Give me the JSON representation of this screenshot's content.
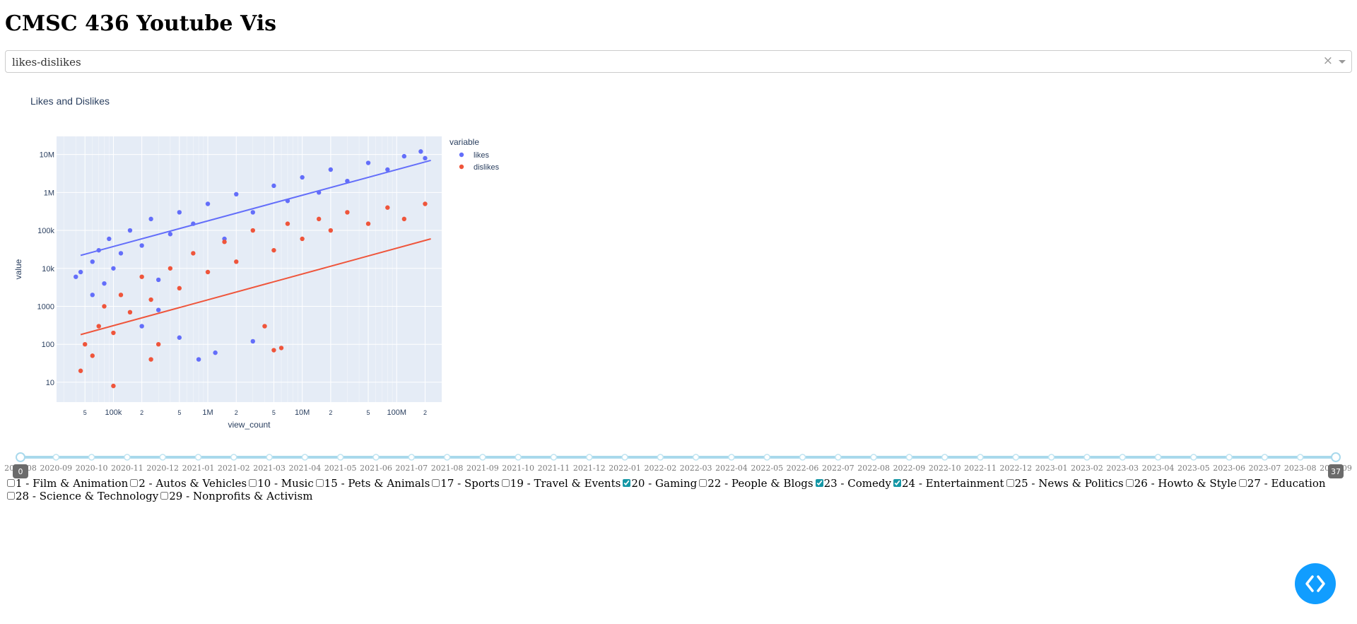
{
  "page": {
    "title": "CMSC 436 Youtube Vis"
  },
  "dropdown": {
    "value": "likes-dislikes",
    "clear_icon": "×",
    "arrow_icon": "chevron-down-icon"
  },
  "chart_data": {
    "type": "scatter",
    "title": "Likes and Dislikes",
    "xlabel": "view_count",
    "ylabel": "value",
    "x_scale": "log",
    "y_scale": "log",
    "xlim": [
      25000,
      300000000
    ],
    "ylim": [
      3,
      30000000
    ],
    "x_ticks": [
      {
        "v": 50000,
        "label": "5"
      },
      {
        "v": 100000,
        "label": "100k"
      },
      {
        "v": 200000,
        "label": "2"
      },
      {
        "v": 500000,
        "label": "5"
      },
      {
        "v": 1000000,
        "label": "1M"
      },
      {
        "v": 2000000,
        "label": "2"
      },
      {
        "v": 5000000,
        "label": "5"
      },
      {
        "v": 10000000,
        "label": "10M"
      },
      {
        "v": 20000000,
        "label": "2"
      },
      {
        "v": 50000000,
        "label": "5"
      },
      {
        "v": 100000000,
        "label": "100M"
      },
      {
        "v": 200000000,
        "label": "2"
      }
    ],
    "y_ticks": [
      {
        "v": 10,
        "label": "10"
      },
      {
        "v": 100,
        "label": "100"
      },
      {
        "v": 1000,
        "label": "1000"
      },
      {
        "v": 10000,
        "label": "10k"
      },
      {
        "v": 100000,
        "label": "100k"
      },
      {
        "v": 1000000,
        "label": "1M"
      },
      {
        "v": 10000000,
        "label": "10M"
      }
    ],
    "grid": true,
    "legend": {
      "title": "variable",
      "placement": "right"
    },
    "series": [
      {
        "name": "likes",
        "color": "#636efa",
        "points": [
          [
            40000,
            6000
          ],
          [
            45000,
            8000
          ],
          [
            60000,
            2000
          ],
          [
            60000,
            15000
          ],
          [
            70000,
            30000
          ],
          [
            80000,
            4000
          ],
          [
            90000,
            60000
          ],
          [
            100000,
            10000
          ],
          [
            120000,
            25000
          ],
          [
            150000,
            100000
          ],
          [
            200000,
            40000
          ],
          [
            250000,
            200000
          ],
          [
            300000,
            5000
          ],
          [
            400000,
            80000
          ],
          [
            500000,
            300000
          ],
          [
            700000,
            150000
          ],
          [
            1000000,
            500000
          ],
          [
            1500000,
            60000
          ],
          [
            2000000,
            900000
          ],
          [
            3000000,
            300000
          ],
          [
            5000000,
            1500000
          ],
          [
            7000000,
            600000
          ],
          [
            10000000,
            2500000
          ],
          [
            15000000,
            1000000
          ],
          [
            20000000,
            4000000
          ],
          [
            30000000,
            2000000
          ],
          [
            50000000,
            6000000
          ],
          [
            80000000,
            4000000
          ],
          [
            120000000,
            9000000
          ],
          [
            180000000,
            12000000
          ],
          [
            200000000,
            8000000
          ],
          [
            300000,
            800
          ],
          [
            200000,
            300
          ],
          [
            500000,
            150
          ],
          [
            800000,
            40
          ],
          [
            1200000,
            60
          ],
          [
            3000000,
            120
          ]
        ],
        "trend": [
          [
            45000,
            22000
          ],
          [
            230000000,
            7000000
          ]
        ]
      },
      {
        "name": "dislikes",
        "color": "#ef553b",
        "points": [
          [
            45000,
            20
          ],
          [
            50000,
            100
          ],
          [
            60000,
            50
          ],
          [
            70000,
            300
          ],
          [
            80000,
            1000
          ],
          [
            100000,
            200
          ],
          [
            120000,
            2000
          ],
          [
            150000,
            700
          ],
          [
            200000,
            6000
          ],
          [
            250000,
            1500
          ],
          [
            300000,
            100
          ],
          [
            400000,
            10000
          ],
          [
            500000,
            3000
          ],
          [
            700000,
            25000
          ],
          [
            1000000,
            8000
          ],
          [
            1500000,
            50000
          ],
          [
            2000000,
            15000
          ],
          [
            3000000,
            100000
          ],
          [
            4000000,
            300
          ],
          [
            5000000,
            30000
          ],
          [
            7000000,
            150000
          ],
          [
            10000000,
            60000
          ],
          [
            15000000,
            200000
          ],
          [
            20000000,
            100000
          ],
          [
            30000000,
            300000
          ],
          [
            50000000,
            150000
          ],
          [
            80000000,
            400000
          ],
          [
            120000000,
            200000
          ],
          [
            200000000,
            500000
          ],
          [
            100000,
            8
          ],
          [
            250000,
            40
          ],
          [
            5000000,
            70
          ],
          [
            6000000,
            80
          ]
        ],
        "trend": [
          [
            45000,
            180
          ],
          [
            230000000,
            60000
          ]
        ]
      }
    ]
  },
  "slider": {
    "min_label": "0",
    "max_label": "37",
    "marks": [
      "2020-08",
      "2020-09",
      "2020-10",
      "2020-11",
      "2020-12",
      "2021-01",
      "2021-02",
      "2021-03",
      "2021-04",
      "2021-05",
      "2021-06",
      "2021-07",
      "2021-08",
      "2021-09",
      "2021-10",
      "2021-11",
      "2021-12",
      "2022-01",
      "2022-02",
      "2022-03",
      "2022-04",
      "2022-05",
      "2022-06",
      "2022-07",
      "2022-08",
      "2022-09",
      "2022-10",
      "2022-11",
      "2022-12",
      "2023-01",
      "2023-02",
      "2023-03",
      "2023-04",
      "2023-05",
      "2023-06",
      "2023-07",
      "2023-08",
      "2023-09"
    ]
  },
  "categories": [
    {
      "label": "1 - Film & Animation",
      "checked": false
    },
    {
      "label": "2 - Autos & Vehicles",
      "checked": false
    },
    {
      "label": "10 - Music",
      "checked": false
    },
    {
      "label": "15 - Pets & Animals",
      "checked": false
    },
    {
      "label": "17 - Sports",
      "checked": false
    },
    {
      "label": "19 - Travel & Events",
      "checked": false
    },
    {
      "label": "20 - Gaming",
      "checked": true
    },
    {
      "label": "22 - People & Blogs",
      "checked": false
    },
    {
      "label": "23 - Comedy",
      "checked": true
    },
    {
      "label": "24 - Entertainment",
      "checked": true
    },
    {
      "label": "25 - News & Politics",
      "checked": false
    },
    {
      "label": "26 - Howto & Style",
      "checked": false
    },
    {
      "label": "27 - Education",
      "checked": false
    },
    {
      "label": "28 - Science & Technology",
      "checked": false
    },
    {
      "label": "29 - Nonprofits & Activism",
      "checked": false
    }
  ],
  "fab": {
    "icon": "code-brackets-icon"
  }
}
